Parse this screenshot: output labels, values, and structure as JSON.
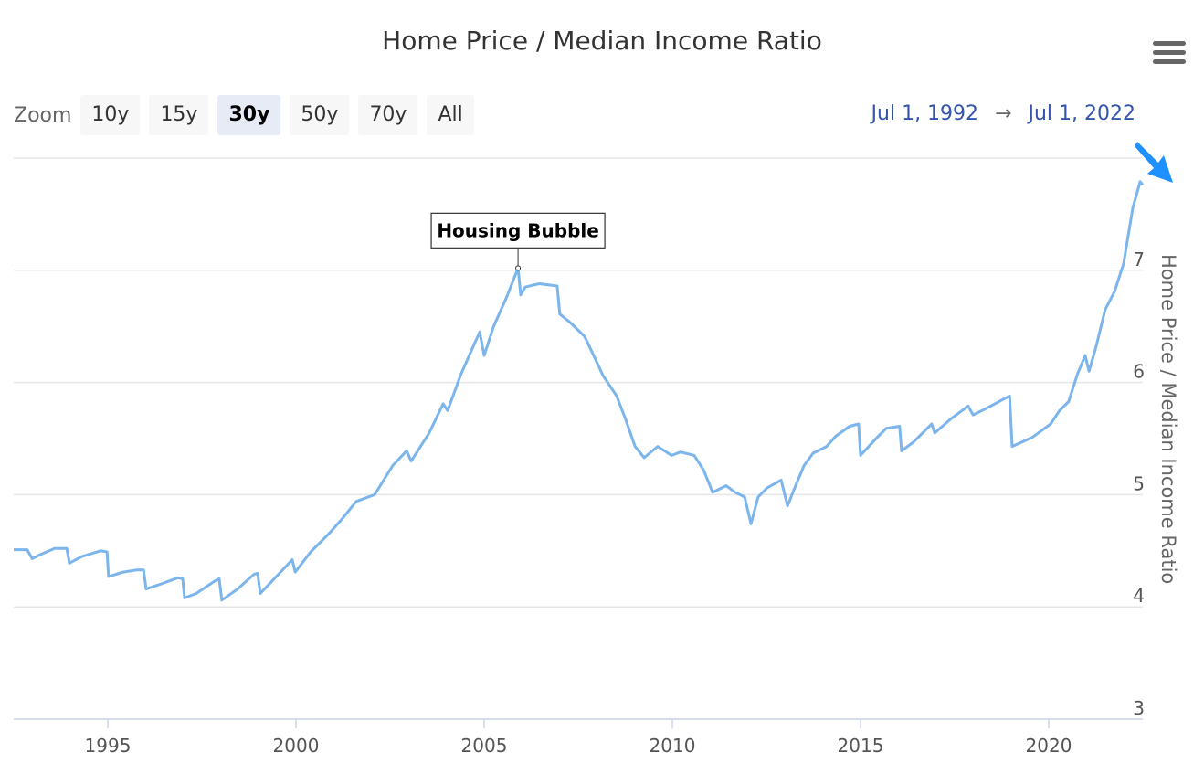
{
  "chart_data": {
    "type": "line",
    "title": "Home Price / Median Income Ratio",
    "xlabel": "",
    "ylabel": "Home Price / Median Income Ratio",
    "xlim": [
      1992.5,
      2022.5
    ],
    "ylim": [
      3,
      8
    ],
    "x_ticks": [
      "1995",
      "2000",
      "2005",
      "2010",
      "2015",
      "2020"
    ],
    "y_ticks": [
      "3",
      "4",
      "5",
      "6",
      "7"
    ],
    "grid": true,
    "series": [
      {
        "name": "Home Price / Median Income Ratio",
        "color": "#7cb5ec",
        "x": [
          1992.5,
          1992.86,
          1992.99,
          1993.23,
          1993.59,
          1993.91,
          1993.98,
          1994.32,
          1994.81,
          1994.98,
          1995.02,
          1995.41,
          1995.78,
          1995.95,
          1996.02,
          1996.38,
          1996.87,
          1996.99,
          1997.04,
          1997.35,
          1997.84,
          1997.96,
          1998.03,
          1998.45,
          1998.88,
          1998.98,
          1999.05,
          1999.42,
          1999.9,
          1999.98,
          2000.39,
          2000.87,
          2001.24,
          2001.6,
          2002.09,
          2002.57,
          2002.94,
          2003.06,
          2003.54,
          2003.91,
          2004.03,
          2004.39,
          2004.88,
          2005.0,
          2005.24,
          2005.61,
          2005.9,
          2005.97,
          2006.09,
          2006.46,
          2006.94,
          2007.01,
          2007.3,
          2007.67,
          2007.91,
          2008.16,
          2008.52,
          2008.76,
          2009.01,
          2009.25,
          2009.61,
          2009.98,
          2010.22,
          2010.58,
          2010.83,
          2011.07,
          2011.43,
          2011.67,
          2011.92,
          2012.09,
          2012.28,
          2012.52,
          2012.89,
          2013.06,
          2013.25,
          2013.5,
          2013.74,
          2014.1,
          2014.34,
          2014.71,
          2014.95,
          2015.0,
          2015.44,
          2015.68,
          2016.04,
          2016.09,
          2016.41,
          2016.89,
          2016.97,
          2017.38,
          2017.86,
          2017.99,
          2018.35,
          2018.96,
          2019.03,
          2019.56,
          2020.05,
          2020.29,
          2020.53,
          2020.77,
          2020.97,
          2021.07,
          2021.26,
          2021.5,
          2021.75,
          2021.99,
          2022.23,
          2022.43,
          2022.5
        ],
        "y": [
          4.51,
          4.51,
          4.43,
          4.47,
          4.52,
          4.52,
          4.39,
          4.45,
          4.5,
          4.49,
          4.27,
          4.31,
          4.33,
          4.33,
          4.16,
          4.2,
          4.26,
          4.25,
          4.08,
          4.12,
          4.23,
          4.25,
          4.06,
          4.16,
          4.29,
          4.3,
          4.12,
          4.25,
          4.42,
          4.31,
          4.49,
          4.65,
          4.79,
          4.94,
          5.0,
          5.26,
          5.39,
          5.3,
          5.55,
          5.81,
          5.75,
          6.08,
          6.45,
          6.24,
          6.49,
          6.77,
          7.02,
          6.78,
          6.85,
          6.88,
          6.86,
          6.61,
          6.53,
          6.41,
          6.24,
          6.06,
          5.88,
          5.67,
          5.43,
          5.33,
          5.43,
          5.35,
          5.38,
          5.35,
          5.22,
          5.02,
          5.08,
          5.02,
          4.98,
          4.74,
          4.98,
          5.06,
          5.13,
          4.9,
          5.06,
          5.26,
          5.37,
          5.43,
          5.52,
          5.61,
          5.63,
          5.35,
          5.51,
          5.59,
          5.61,
          5.39,
          5.47,
          5.63,
          5.55,
          5.67,
          5.79,
          5.71,
          5.77,
          5.88,
          5.43,
          5.51,
          5.63,
          5.75,
          5.83,
          6.08,
          6.24,
          6.1,
          6.32,
          6.65,
          6.81,
          7.06,
          7.55,
          7.79,
          7.76
        ]
      }
    ],
    "annotations": [
      {
        "text": "Housing Bubble",
        "x": 2005.9,
        "y": 7.02
      }
    ]
  },
  "zoom": {
    "label": "Zoom",
    "buttons": [
      "10y",
      "15y",
      "30y",
      "50y",
      "70y",
      "All"
    ],
    "active": "30y"
  },
  "range": {
    "from": "Jul 1, 1992",
    "arrow": "→",
    "to": "Jul 1, 2022"
  },
  "icons": {
    "menu": "hamburger-menu-icon",
    "arrow": "blue-arrow-pointer"
  }
}
